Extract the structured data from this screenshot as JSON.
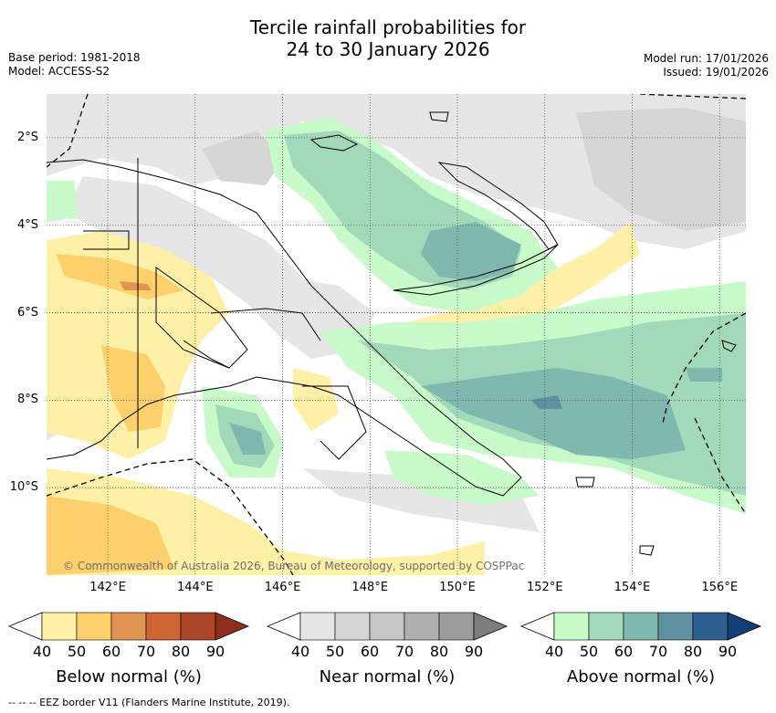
{
  "title": {
    "line1": "Tercile rainfall probabilities for",
    "line2": "24 to 30 January 2026"
  },
  "meta": {
    "base_period": "Base period: 1981-2018",
    "model": "Model: ACCESS-S2",
    "model_run": "Model run: 17/01/2026",
    "issued": "Issued: 19/01/2026"
  },
  "map": {
    "lat_labels": [
      "2°S",
      "4°S",
      "6°S",
      "8°S",
      "10°S"
    ],
    "lon_labels": [
      "142°E",
      "144°E",
      "146°E",
      "148°E",
      "150°E",
      "152°E",
      "154°E",
      "156°E"
    ],
    "lon_range": [
      140.6,
      156.6
    ],
    "lat_range": [
      -12.0,
      -1.0
    ],
    "copyright": "© Commonwealth of Australia 2026, Bureau of Meteorology, supported by COSPPac"
  },
  "colorbars": [
    {
      "title": "Below normal (%)",
      "ticks": [
        "40",
        "50",
        "60",
        "70",
        "80",
        "90"
      ],
      "colors": [
        "#fff0a8",
        "#fdd06c",
        "#e09550",
        "#cd6535",
        "#ab4628",
        "#8e2f1e"
      ]
    },
    {
      "title": "Near normal (%)",
      "ticks": [
        "40",
        "50",
        "60",
        "70",
        "80",
        "90"
      ],
      "colors": [
        "#e6e6e6",
        "#d6d6d6",
        "#c6c6c6",
        "#b0b0b0",
        "#9c9c9c",
        "#7d7d7d"
      ]
    },
    {
      "title": "Above normal (%)",
      "ticks": [
        "40",
        "50",
        "60",
        "70",
        "80",
        "90"
      ],
      "colors": [
        "#c9fac9",
        "#a2d9bb",
        "#7fb8ae",
        "#5f91a3",
        "#2e5f90",
        "#123f78"
      ]
    }
  ],
  "footer": "--  --  -- EEZ border V11 (Flanders Marine Institute, 2019)."
}
